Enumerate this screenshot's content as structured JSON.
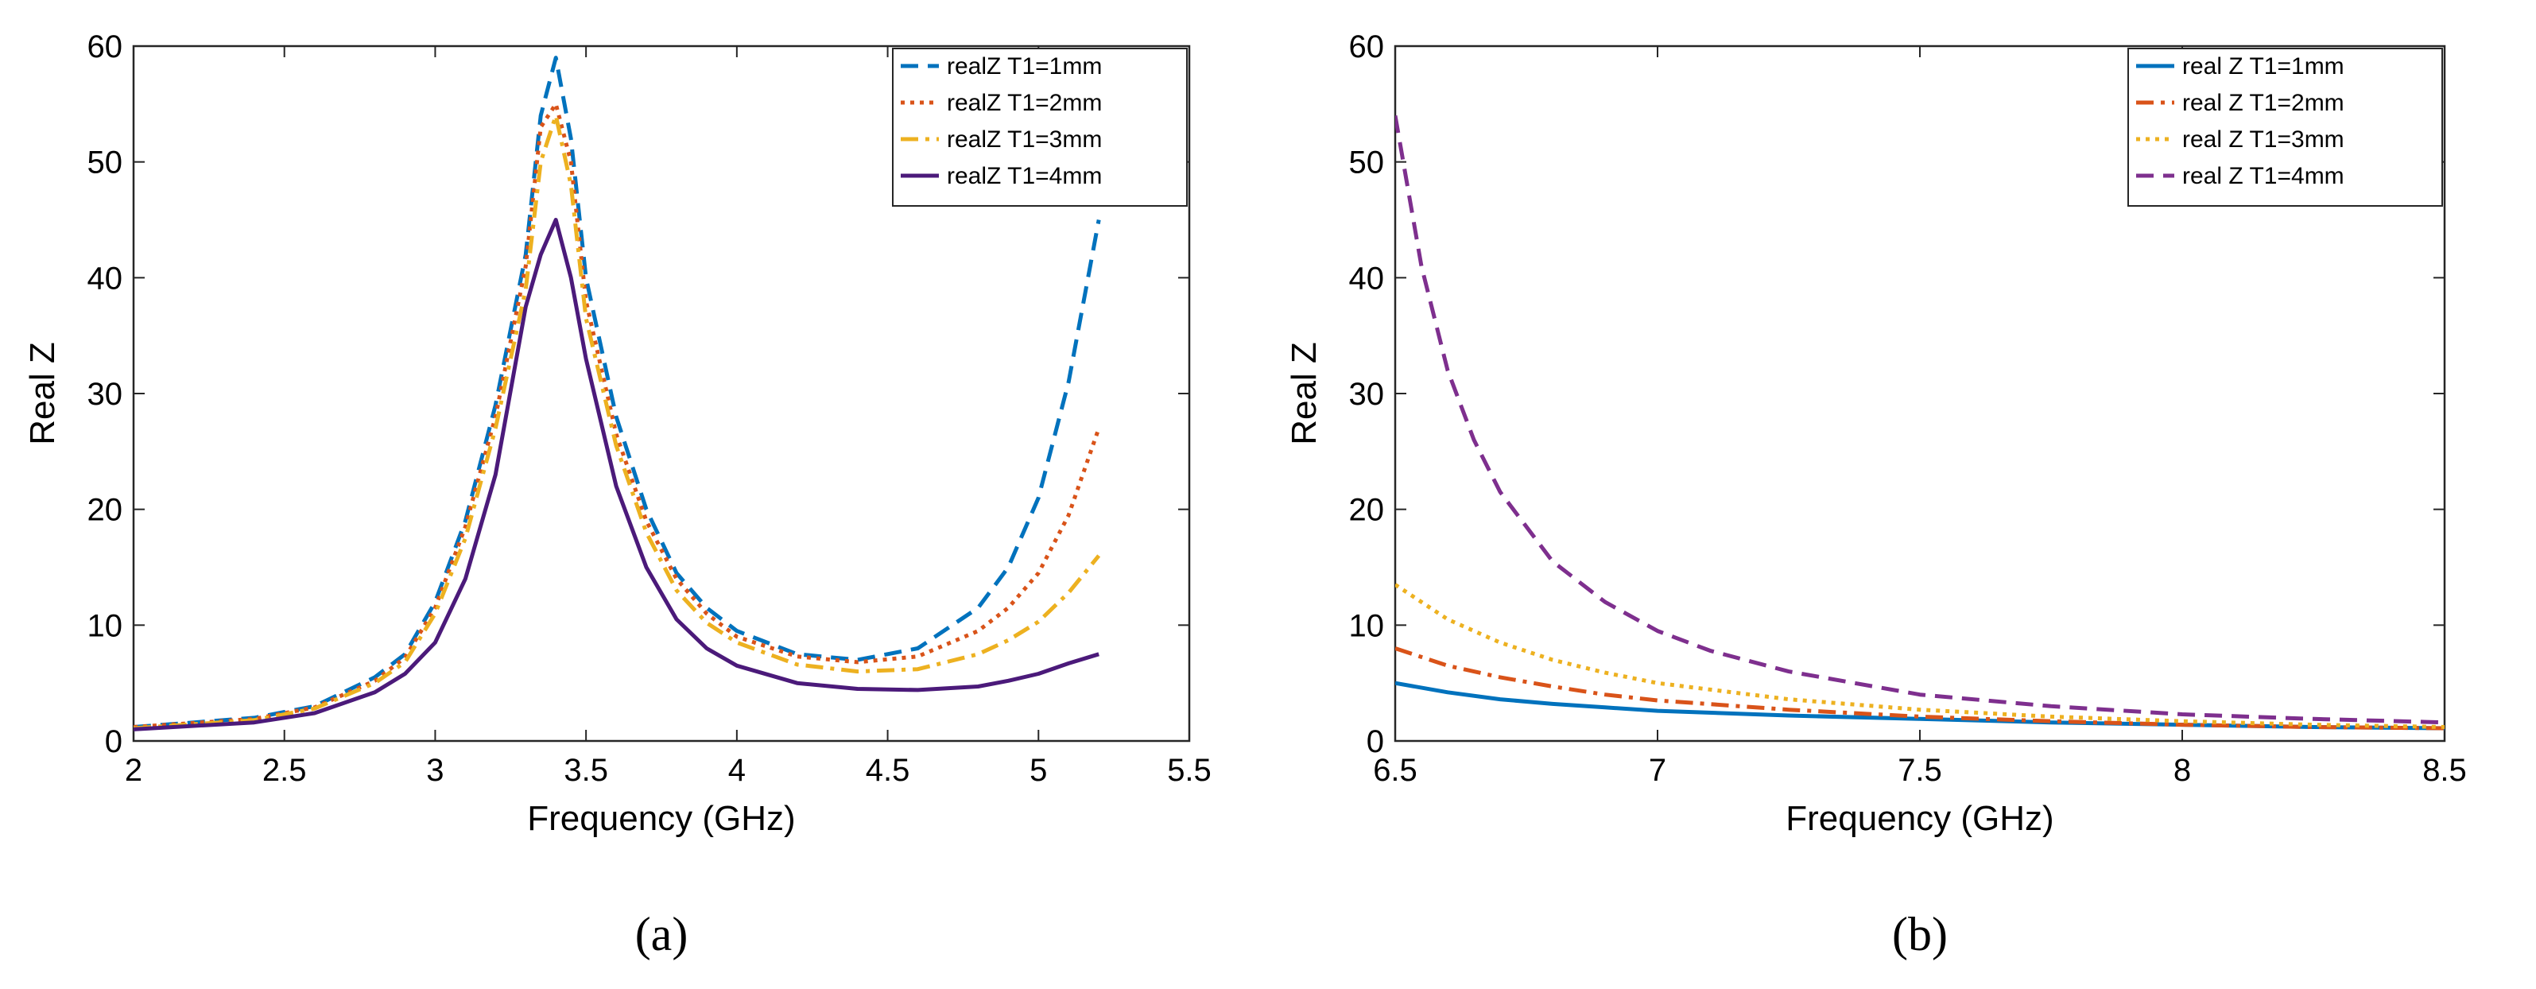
{
  "chart_data": [
    {
      "type": "line",
      "panel_label": "(a)",
      "xlabel": "Frequency (GHz)",
      "ylabel": "Real Z",
      "xlim": [
        2,
        5.5
      ],
      "ylim": [
        0,
        60
      ],
      "xticks": [
        "2",
        "2.5",
        "3",
        "3.5",
        "4",
        "4.5",
        "5",
        "5.5"
      ],
      "yticks": [
        "0",
        "10",
        "20",
        "30",
        "40",
        "50",
        "60"
      ],
      "legend_position": "top-right",
      "series": [
        {
          "name": "realZ T1=1mm",
          "color": "#0072BD",
          "style": "dashed",
          "x": [
            2.0,
            2.4,
            2.6,
            2.8,
            2.9,
            3.0,
            3.1,
            3.2,
            3.3,
            3.35,
            3.4,
            3.45,
            3.5,
            3.6,
            3.7,
            3.8,
            3.9,
            4.0,
            4.2,
            4.4,
            4.6,
            4.8,
            4.9,
            5.0,
            5.1,
            5.2
          ],
          "y": [
            1.2,
            2.0,
            3.0,
            5.5,
            7.5,
            12.0,
            19.0,
            29.0,
            42.0,
            54.0,
            59.0,
            52.0,
            40.0,
            28.0,
            20.0,
            14.5,
            11.5,
            9.5,
            7.5,
            7.0,
            8.0,
            11.5,
            15.0,
            21.0,
            31.0,
            45.0
          ]
        },
        {
          "name": "realZ T1=2mm",
          "color": "#D95319",
          "style": "dotted",
          "x": [
            2.0,
            2.4,
            2.6,
            2.8,
            2.9,
            3.0,
            3.1,
            3.2,
            3.3,
            3.35,
            3.4,
            3.45,
            3.5,
            3.6,
            3.7,
            3.8,
            3.9,
            4.0,
            4.2,
            4.4,
            4.6,
            4.8,
            4.9,
            5.0,
            5.1,
            5.2
          ],
          "y": [
            1.2,
            1.9,
            2.9,
            5.2,
            7.2,
            11.5,
            18.5,
            28.0,
            41.0,
            53.0,
            55.0,
            50.0,
            38.0,
            26.5,
            19.0,
            14.0,
            11.0,
            9.0,
            7.3,
            6.8,
            7.3,
            9.5,
            11.5,
            14.5,
            19.5,
            27.0
          ]
        },
        {
          "name": "realZ T1=3mm",
          "color": "#EDB120",
          "style": "dashdot",
          "x": [
            2.0,
            2.4,
            2.6,
            2.8,
            2.9,
            3.0,
            3.1,
            3.2,
            3.3,
            3.35,
            3.4,
            3.45,
            3.5,
            3.6,
            3.7,
            3.8,
            3.9,
            4.0,
            4.2,
            4.4,
            4.6,
            4.8,
            4.9,
            5.0,
            5.1,
            5.2
          ],
          "y": [
            1.1,
            1.8,
            2.8,
            5.0,
            6.8,
            11.0,
            17.5,
            27.0,
            39.0,
            50.0,
            54.0,
            48.0,
            36.5,
            25.5,
            18.0,
            13.0,
            10.2,
            8.5,
            6.6,
            6.0,
            6.2,
            7.5,
            8.7,
            10.3,
            12.8,
            16.0
          ]
        },
        {
          "name": "realZ T1=4mm",
          "color": "#4B1A7A",
          "style": "solid",
          "x": [
            2.0,
            2.4,
            2.6,
            2.8,
            2.9,
            3.0,
            3.1,
            3.2,
            3.3,
            3.35,
            3.4,
            3.45,
            3.5,
            3.6,
            3.7,
            3.8,
            3.9,
            4.0,
            4.2,
            4.4,
            4.6,
            4.8,
            4.9,
            5.0,
            5.1,
            5.2
          ],
          "y": [
            1.0,
            1.6,
            2.4,
            4.2,
            5.8,
            8.5,
            14.0,
            23.0,
            37.5,
            42.0,
            45.0,
            40.0,
            33.0,
            22.0,
            15.0,
            10.5,
            8.0,
            6.5,
            5.0,
            4.5,
            4.4,
            4.7,
            5.2,
            5.8,
            6.7,
            7.5
          ]
        }
      ]
    },
    {
      "type": "line",
      "panel_label": "(b)",
      "xlabel": "Frequency (GHz)",
      "ylabel": "Real Z",
      "xlim": [
        6.5,
        8.5
      ],
      "ylim": [
        0,
        60
      ],
      "xticks": [
        "6.5",
        "7",
        "7.5",
        "8",
        "8.5"
      ],
      "yticks": [
        "0",
        "10",
        "20",
        "30",
        "40",
        "50",
        "60"
      ],
      "legend_position": "top-right",
      "series": [
        {
          "name": "real Z T1=1mm",
          "color": "#0072BD",
          "style": "solid",
          "x": [
            6.5,
            6.6,
            6.7,
            6.8,
            6.9,
            7.0,
            7.25,
            7.5,
            7.75,
            8.0,
            8.25,
            8.5
          ],
          "y": [
            5.0,
            4.2,
            3.6,
            3.2,
            2.9,
            2.6,
            2.2,
            1.9,
            1.6,
            1.4,
            1.2,
            1.1
          ]
        },
        {
          "name": "real Z T1=2mm",
          "color": "#D95319",
          "style": "dashdot",
          "x": [
            6.5,
            6.6,
            6.7,
            6.8,
            6.9,
            7.0,
            7.25,
            7.5,
            7.75,
            8.0,
            8.25,
            8.5
          ],
          "y": [
            8.0,
            6.5,
            5.5,
            4.7,
            4.0,
            3.5,
            2.7,
            2.1,
            1.7,
            1.4,
            1.2,
            1.1
          ]
        },
        {
          "name": "real Z T1=3mm",
          "color": "#EDB120",
          "style": "dotted",
          "x": [
            6.5,
            6.6,
            6.7,
            6.8,
            6.9,
            7.0,
            7.25,
            7.5,
            7.75,
            8.0,
            8.25,
            8.5
          ],
          "y": [
            13.5,
            10.5,
            8.5,
            7.0,
            5.9,
            5.0,
            3.6,
            2.7,
            2.1,
            1.7,
            1.4,
            1.2
          ]
        },
        {
          "name": "real Z T1=4mm",
          "color": "#7E2F8E",
          "style": "dashed",
          "x": [
            6.5,
            6.55,
            6.6,
            6.65,
            6.7,
            6.8,
            6.9,
            7.0,
            7.1,
            7.25,
            7.5,
            7.75,
            8.0,
            8.25,
            8.5
          ],
          "y": [
            54.0,
            41.0,
            32.0,
            26.0,
            21.5,
            15.5,
            12.0,
            9.5,
            7.8,
            6.0,
            4.0,
            3.0,
            2.3,
            1.9,
            1.6
          ]
        }
      ]
    }
  ]
}
